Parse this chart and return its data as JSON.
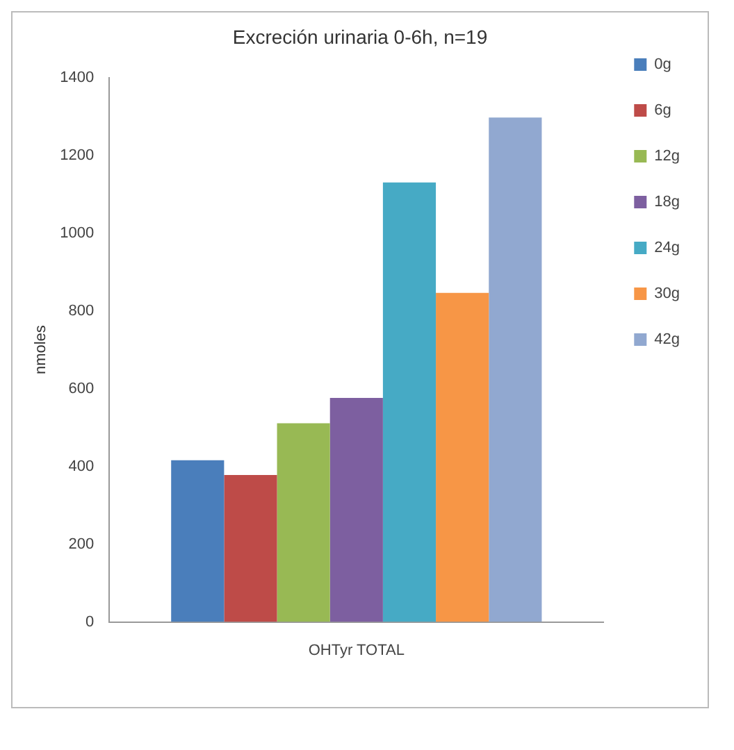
{
  "chart_data": {
    "type": "bar",
    "title": "Excreción urinaria 0-6h, n=19",
    "ylabel": "nmoles",
    "categories": [
      "OHTyr TOTAL"
    ],
    "series": [
      {
        "name": "0g",
        "color": "#4a7ebb",
        "values": [
          416
        ]
      },
      {
        "name": "6g",
        "color": "#be4b48",
        "values": [
          378
        ]
      },
      {
        "name": "12g",
        "color": "#98b954",
        "values": [
          511
        ]
      },
      {
        "name": "18g",
        "color": "#7d5fa0",
        "values": [
          576
        ]
      },
      {
        "name": "24g",
        "color": "#46aac5",
        "values": [
          1130
        ]
      },
      {
        "name": "30g",
        "color": "#f79646",
        "values": [
          846
        ]
      },
      {
        "name": "42g",
        "color": "#91a8d0",
        "values": [
          1297
        ]
      }
    ],
    "ylim": [
      0,
      1400
    ],
    "yticks": [
      0,
      200,
      400,
      600,
      800,
      1000,
      1200,
      1400
    ],
    "grid": false,
    "legend": "right"
  }
}
